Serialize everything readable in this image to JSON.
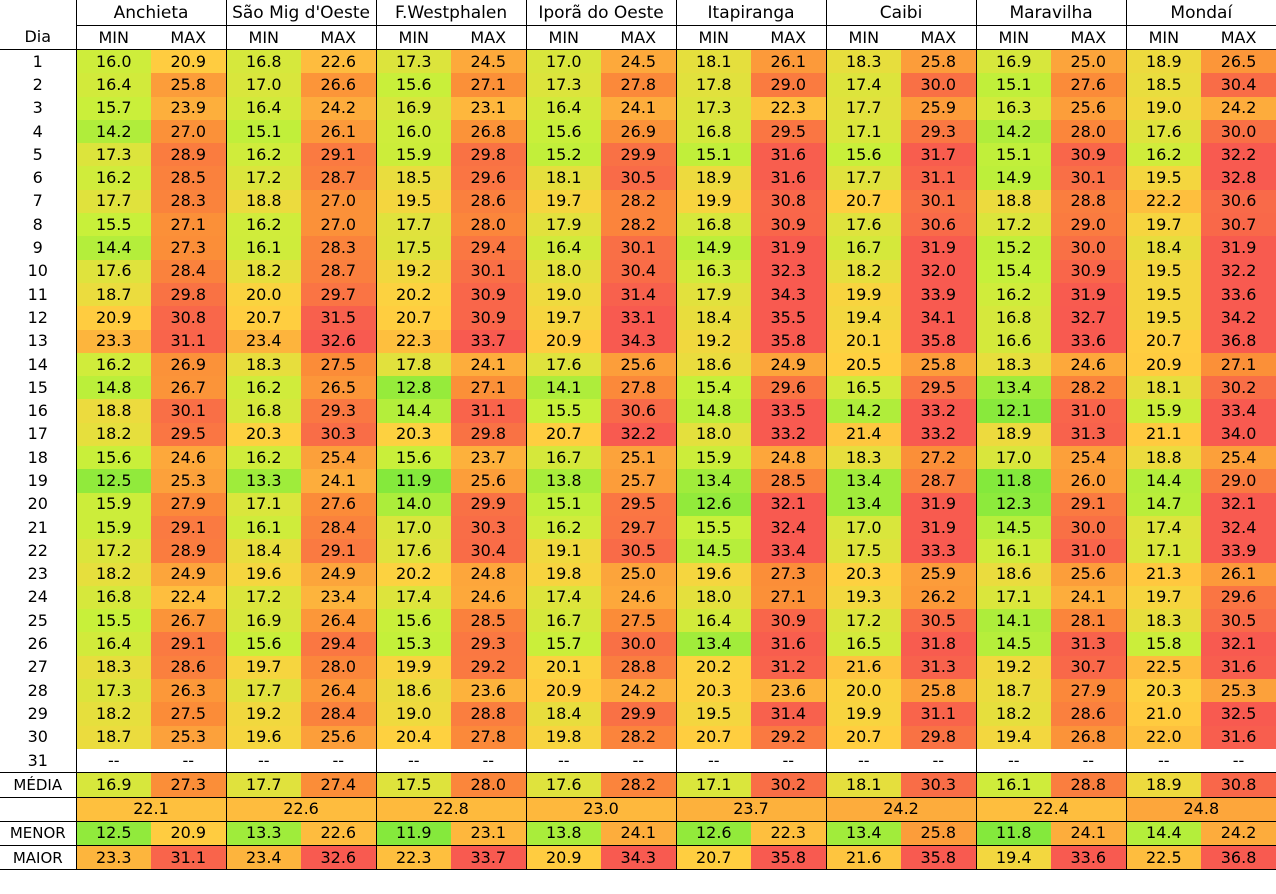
{
  "header": {
    "dia_label": "Dia",
    "min_label": "MIN",
    "max_label": "MAX",
    "cities": [
      "Anchieta",
      "São Mig d'Oeste",
      "F.Westphalen",
      "Iporã do Oeste",
      "Itapiranga",
      "Caibi",
      "Maravilha",
      "Mondaí"
    ]
  },
  "rows": [
    {
      "day": "1",
      "values": [
        [
          "16.0",
          "20.9"
        ],
        [
          "16.8",
          "22.6"
        ],
        [
          "17.3",
          "24.5"
        ],
        [
          "17.0",
          "24.5"
        ],
        [
          "18.1",
          "26.1"
        ],
        [
          "18.3",
          "25.8"
        ],
        [
          "16.9",
          "25.0"
        ],
        [
          "18.9",
          "26.5"
        ]
      ]
    },
    {
      "day": "2",
      "values": [
        [
          "16.4",
          "25.8"
        ],
        [
          "17.0",
          "26.6"
        ],
        [
          "15.6",
          "27.1"
        ],
        [
          "17.3",
          "27.8"
        ],
        [
          "17.8",
          "29.0"
        ],
        [
          "17.4",
          "30.0"
        ],
        [
          "15.1",
          "27.6"
        ],
        [
          "18.5",
          "30.4"
        ]
      ]
    },
    {
      "day": "3",
      "values": [
        [
          "15.7",
          "23.9"
        ],
        [
          "16.4",
          "24.2"
        ],
        [
          "16.9",
          "23.1"
        ],
        [
          "16.4",
          "24.1"
        ],
        [
          "17.3",
          "22.3"
        ],
        [
          "17.7",
          "25.9"
        ],
        [
          "16.3",
          "25.6"
        ],
        [
          "19.0",
          "24.2"
        ]
      ]
    },
    {
      "day": "4",
      "values": [
        [
          "14.2",
          "27.0"
        ],
        [
          "15.1",
          "26.1"
        ],
        [
          "16.0",
          "26.8"
        ],
        [
          "15.6",
          "26.9"
        ],
        [
          "16.8",
          "29.5"
        ],
        [
          "17.1",
          "29.3"
        ],
        [
          "14.2",
          "28.0"
        ],
        [
          "17.6",
          "30.0"
        ]
      ]
    },
    {
      "day": "5",
      "values": [
        [
          "17.3",
          "28.9"
        ],
        [
          "16.2",
          "29.1"
        ],
        [
          "15.9",
          "29.8"
        ],
        [
          "15.2",
          "29.9"
        ],
        [
          "15.1",
          "31.6"
        ],
        [
          "15.6",
          "31.7"
        ],
        [
          "15.1",
          "30.9"
        ],
        [
          "16.2",
          "32.2"
        ]
      ]
    },
    {
      "day": "6",
      "values": [
        [
          "16.2",
          "28.5"
        ],
        [
          "17.2",
          "28.7"
        ],
        [
          "18.5",
          "29.6"
        ],
        [
          "18.1",
          "30.5"
        ],
        [
          "18.9",
          "31.6"
        ],
        [
          "17.7",
          "31.1"
        ],
        [
          "14.9",
          "30.1"
        ],
        [
          "19.5",
          "32.8"
        ]
      ]
    },
    {
      "day": "7",
      "values": [
        [
          "17.7",
          "28.3"
        ],
        [
          "18.8",
          "27.0"
        ],
        [
          "19.5",
          "28.6"
        ],
        [
          "19.7",
          "28.2"
        ],
        [
          "19.9",
          "30.8"
        ],
        [
          "20.7",
          "30.1"
        ],
        [
          "18.8",
          "28.8"
        ],
        [
          "22.2",
          "30.6"
        ]
      ]
    },
    {
      "day": "8",
      "values": [
        [
          "15.5",
          "27.1"
        ],
        [
          "16.2",
          "27.0"
        ],
        [
          "17.7",
          "28.0"
        ],
        [
          "17.9",
          "28.2"
        ],
        [
          "16.8",
          "30.9"
        ],
        [
          "17.6",
          "30.6"
        ],
        [
          "17.2",
          "29.0"
        ],
        [
          "19.7",
          "30.7"
        ]
      ]
    },
    {
      "day": "9",
      "values": [
        [
          "14.4",
          "27.3"
        ],
        [
          "16.1",
          "28.3"
        ],
        [
          "17.5",
          "29.4"
        ],
        [
          "16.4",
          "30.1"
        ],
        [
          "14.9",
          "31.9"
        ],
        [
          "16.7",
          "31.9"
        ],
        [
          "15.2",
          "30.0"
        ],
        [
          "18.4",
          "31.9"
        ]
      ]
    },
    {
      "day": "10",
      "values": [
        [
          "17.6",
          "28.4"
        ],
        [
          "18.2",
          "28.7"
        ],
        [
          "19.2",
          "30.1"
        ],
        [
          "18.0",
          "30.4"
        ],
        [
          "16.3",
          "32.3"
        ],
        [
          "18.2",
          "32.0"
        ],
        [
          "15.4",
          "30.9"
        ],
        [
          "19.5",
          "32.2"
        ]
      ]
    },
    {
      "day": "11",
      "values": [
        [
          "18.7",
          "29.8"
        ],
        [
          "20.0",
          "29.7"
        ],
        [
          "20.2",
          "30.9"
        ],
        [
          "19.0",
          "31.4"
        ],
        [
          "17.9",
          "34.3"
        ],
        [
          "19.9",
          "33.9"
        ],
        [
          "16.2",
          "31.9"
        ],
        [
          "19.5",
          "33.6"
        ]
      ]
    },
    {
      "day": "12",
      "values": [
        [
          "20.9",
          "30.8"
        ],
        [
          "20.7",
          "31.5"
        ],
        [
          "20.7",
          "30.9"
        ],
        [
          "19.7",
          "33.1"
        ],
        [
          "18.4",
          "35.5"
        ],
        [
          "19.4",
          "34.1"
        ],
        [
          "16.8",
          "32.7"
        ],
        [
          "19.5",
          "34.2"
        ]
      ]
    },
    {
      "day": "13",
      "values": [
        [
          "23.3",
          "31.1"
        ],
        [
          "23.4",
          "32.6"
        ],
        [
          "22.3",
          "33.7"
        ],
        [
          "20.9",
          "34.3"
        ],
        [
          "19.2",
          "35.8"
        ],
        [
          "20.1",
          "35.8"
        ],
        [
          "16.6",
          "33.6"
        ],
        [
          "20.7",
          "36.8"
        ]
      ]
    },
    {
      "day": "14",
      "values": [
        [
          "16.2",
          "26.9"
        ],
        [
          "18.3",
          "27.5"
        ],
        [
          "17.8",
          "24.1"
        ],
        [
          "17.6",
          "25.6"
        ],
        [
          "18.6",
          "24.9"
        ],
        [
          "20.5",
          "25.8"
        ],
        [
          "18.3",
          "24.6"
        ],
        [
          "20.9",
          "27.1"
        ]
      ]
    },
    {
      "day": "15",
      "values": [
        [
          "14.8",
          "26.7"
        ],
        [
          "16.2",
          "26.5"
        ],
        [
          "12.8",
          "27.1"
        ],
        [
          "14.1",
          "27.8"
        ],
        [
          "15.4",
          "29.6"
        ],
        [
          "16.5",
          "29.5"
        ],
        [
          "13.4",
          "28.2"
        ],
        [
          "18.1",
          "30.2"
        ]
      ]
    },
    {
      "day": "16",
      "values": [
        [
          "18.8",
          "30.1"
        ],
        [
          "16.8",
          "29.3"
        ],
        [
          "14.4",
          "31.1"
        ],
        [
          "15.5",
          "30.6"
        ],
        [
          "14.8",
          "33.5"
        ],
        [
          "14.2",
          "33.2"
        ],
        [
          "12.1",
          "31.0"
        ],
        [
          "15.9",
          "33.4"
        ]
      ]
    },
    {
      "day": "17",
      "values": [
        [
          "18.2",
          "29.5"
        ],
        [
          "20.3",
          "30.3"
        ],
        [
          "20.3",
          "29.8"
        ],
        [
          "20.7",
          "32.2"
        ],
        [
          "18.0",
          "33.2"
        ],
        [
          "21.4",
          "33.2"
        ],
        [
          "18.9",
          "31.3"
        ],
        [
          "21.1",
          "34.0"
        ]
      ]
    },
    {
      "day": "18",
      "values": [
        [
          "15.6",
          "24.6"
        ],
        [
          "16.2",
          "25.4"
        ],
        [
          "15.6",
          "23.7"
        ],
        [
          "16.7",
          "25.1"
        ],
        [
          "15.9",
          "24.8"
        ],
        [
          "18.3",
          "27.2"
        ],
        [
          "17.0",
          "25.4"
        ],
        [
          "18.8",
          "25.4"
        ]
      ]
    },
    {
      "day": "19",
      "values": [
        [
          "12.5",
          "25.3"
        ],
        [
          "13.3",
          "24.1"
        ],
        [
          "11.9",
          "25.6"
        ],
        [
          "13.8",
          "25.7"
        ],
        [
          "13.4",
          "28.5"
        ],
        [
          "13.4",
          "28.7"
        ],
        [
          "11.8",
          "26.0"
        ],
        [
          "14.4",
          "29.0"
        ]
      ]
    },
    {
      "day": "20",
      "values": [
        [
          "15.9",
          "27.9"
        ],
        [
          "17.1",
          "27.6"
        ],
        [
          "14.0",
          "29.9"
        ],
        [
          "15.1",
          "29.5"
        ],
        [
          "12.6",
          "32.1"
        ],
        [
          "13.4",
          "31.9"
        ],
        [
          "12.3",
          "29.1"
        ],
        [
          "14.7",
          "32.1"
        ]
      ]
    },
    {
      "day": "21",
      "values": [
        [
          "15.9",
          "29.1"
        ],
        [
          "16.1",
          "28.4"
        ],
        [
          "17.0",
          "30.3"
        ],
        [
          "16.2",
          "29.7"
        ],
        [
          "15.5",
          "32.4"
        ],
        [
          "17.0",
          "31.9"
        ],
        [
          "14.5",
          "30.0"
        ],
        [
          "17.4",
          "32.4"
        ]
      ]
    },
    {
      "day": "22",
      "values": [
        [
          "17.2",
          "28.9"
        ],
        [
          "18.4",
          "29.1"
        ],
        [
          "17.6",
          "30.4"
        ],
        [
          "19.1",
          "30.5"
        ],
        [
          "14.5",
          "33.4"
        ],
        [
          "17.5",
          "33.3"
        ],
        [
          "16.1",
          "31.0"
        ],
        [
          "17.1",
          "33.9"
        ]
      ]
    },
    {
      "day": "23",
      "values": [
        [
          "18.2",
          "24.9"
        ],
        [
          "19.6",
          "24.9"
        ],
        [
          "20.2",
          "24.8"
        ],
        [
          "19.8",
          "25.0"
        ],
        [
          "19.6",
          "27.3"
        ],
        [
          "20.3",
          "25.9"
        ],
        [
          "18.6",
          "25.6"
        ],
        [
          "21.3",
          "26.1"
        ]
      ]
    },
    {
      "day": "24",
      "values": [
        [
          "16.8",
          "22.4"
        ],
        [
          "17.2",
          "23.4"
        ],
        [
          "17.4",
          "24.6"
        ],
        [
          "17.4",
          "24.6"
        ],
        [
          "18.0",
          "27.1"
        ],
        [
          "19.3",
          "26.2"
        ],
        [
          "17.1",
          "24.1"
        ],
        [
          "19.7",
          "29.6"
        ]
      ]
    },
    {
      "day": "25",
      "values": [
        [
          "15.5",
          "26.7"
        ],
        [
          "16.9",
          "26.4"
        ],
        [
          "15.6",
          "28.5"
        ],
        [
          "16.7",
          "27.5"
        ],
        [
          "16.4",
          "30.9"
        ],
        [
          "17.2",
          "30.5"
        ],
        [
          "14.1",
          "28.1"
        ],
        [
          "18.3",
          "30.5"
        ]
      ]
    },
    {
      "day": "26",
      "values": [
        [
          "16.4",
          "29.1"
        ],
        [
          "15.6",
          "29.4"
        ],
        [
          "15.3",
          "29.3"
        ],
        [
          "15.7",
          "30.0"
        ],
        [
          "13.4",
          "31.6"
        ],
        [
          "16.5",
          "31.8"
        ],
        [
          "14.5",
          "31.3"
        ],
        [
          "15.8",
          "32.1"
        ]
      ]
    },
    {
      "day": "27",
      "values": [
        [
          "18.3",
          "28.6"
        ],
        [
          "19.7",
          "28.0"
        ],
        [
          "19.9",
          "29.2"
        ],
        [
          "20.1",
          "28.8"
        ],
        [
          "20.2",
          "31.2"
        ],
        [
          "21.6",
          "31.3"
        ],
        [
          "19.2",
          "30.7"
        ],
        [
          "22.5",
          "31.6"
        ]
      ]
    },
    {
      "day": "28",
      "values": [
        [
          "17.3",
          "26.3"
        ],
        [
          "17.7",
          "26.4"
        ],
        [
          "18.6",
          "23.6"
        ],
        [
          "20.9",
          "24.2"
        ],
        [
          "20.3",
          "23.6"
        ],
        [
          "20.0",
          "25.8"
        ],
        [
          "18.7",
          "27.9"
        ],
        [
          "20.3",
          "25.3"
        ]
      ]
    },
    {
      "day": "29",
      "values": [
        [
          "18.2",
          "27.5"
        ],
        [
          "19.2",
          "28.4"
        ],
        [
          "19.0",
          "28.8"
        ],
        [
          "18.4",
          "29.9"
        ],
        [
          "19.5",
          "31.4"
        ],
        [
          "19.9",
          "31.1"
        ],
        [
          "18.2",
          "28.6"
        ],
        [
          "21.0",
          "32.5"
        ]
      ]
    },
    {
      "day": "30",
      "values": [
        [
          "18.7",
          "25.3"
        ],
        [
          "19.6",
          "25.6"
        ],
        [
          "20.4",
          "27.8"
        ],
        [
          "19.8",
          "28.2"
        ],
        [
          "20.7",
          "29.2"
        ],
        [
          "20.7",
          "29.8"
        ],
        [
          "19.4",
          "26.8"
        ],
        [
          "22.0",
          "31.6"
        ]
      ]
    },
    {
      "day": "31",
      "values": [
        [
          "--",
          "--"
        ],
        [
          "--",
          "--"
        ],
        [
          "--",
          "--"
        ],
        [
          "--",
          "--"
        ],
        [
          "--",
          "--"
        ],
        [
          "--",
          "--"
        ],
        [
          "--",
          "--"
        ],
        [
          "--",
          "--"
        ]
      ]
    }
  ],
  "media": {
    "label": "MÉDIA",
    "values": [
      [
        "16.9",
        "27.3"
      ],
      [
        "17.7",
        "27.4"
      ],
      [
        "17.5",
        "28.0"
      ],
      [
        "17.6",
        "28.2"
      ],
      [
        "17.1",
        "30.2"
      ],
      [
        "18.1",
        "30.3"
      ],
      [
        "16.1",
        "28.8"
      ],
      [
        "18.9",
        "30.8"
      ]
    ]
  },
  "avg": {
    "values": [
      "22.1",
      "22.6",
      "22.8",
      "23.0",
      "23.7",
      "24.2",
      "22.4",
      "24.8"
    ]
  },
  "menor": {
    "label": "MENOR",
    "values": [
      [
        "12.5",
        "20.9"
      ],
      [
        "13.3",
        "22.6"
      ],
      [
        "11.9",
        "23.1"
      ],
      [
        "13.8",
        "24.1"
      ],
      [
        "12.6",
        "22.3"
      ],
      [
        "13.4",
        "25.8"
      ],
      [
        "11.8",
        "24.1"
      ],
      [
        "14.4",
        "24.2"
      ]
    ]
  },
  "maior": {
    "label": "MAIOR",
    "values": [
      [
        "23.3",
        "31.1"
      ],
      [
        "23.4",
        "32.6"
      ],
      [
        "22.3",
        "33.7"
      ],
      [
        "20.9",
        "34.3"
      ],
      [
        "20.7",
        "35.8"
      ],
      [
        "21.6",
        "35.8"
      ],
      [
        "19.4",
        "33.6"
      ],
      [
        "22.5",
        "36.8"
      ]
    ]
  },
  "colors": {
    "green": "#7ee83c",
    "yellow_green": "#c8f03a",
    "yellow": "#ffd040",
    "orange": "#fb8c38",
    "red": "#f85a50"
  }
}
